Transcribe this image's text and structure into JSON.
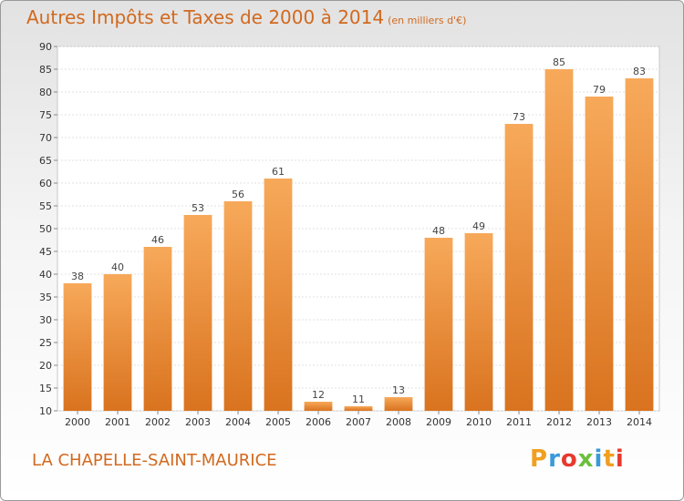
{
  "title": "Autres Impôts et Taxes de 2000 à 2014",
  "unit": "(en milliers d'€)",
  "location": "LA CHAPELLE-SAINT-MAURICE",
  "logo": {
    "letters": [
      "P",
      "r",
      "o",
      "x",
      "i",
      "t",
      "i"
    ],
    "colors": [
      "#f0a020",
      "#3a9ad9",
      "#e63a2e",
      "#6cbf3e",
      "#3a9ad9",
      "#f0a020",
      "#e63a2e"
    ]
  },
  "colors": {
    "bar": "#e8822c",
    "bar_light": "#f7a95a",
    "text": "#d2691e"
  },
  "chart_data": {
    "type": "bar",
    "title": "Autres Impôts et Taxes de 2000 à 2014",
    "ylabel": "",
    "xlabel": "",
    "ylim": [
      10,
      90
    ],
    "yticks": [
      10,
      15,
      20,
      25,
      30,
      35,
      40,
      45,
      50,
      55,
      60,
      65,
      70,
      75,
      80,
      85,
      90
    ],
    "grid": true,
    "categories": [
      "2000",
      "2001",
      "2002",
      "2003",
      "2004",
      "2005",
      "2006",
      "2007",
      "2008",
      "2009",
      "2010",
      "2011",
      "2012",
      "2013",
      "2014"
    ],
    "values": [
      38,
      40,
      46,
      53,
      56,
      61,
      12,
      11,
      13,
      48,
      49,
      73,
      85,
      79,
      83
    ]
  }
}
